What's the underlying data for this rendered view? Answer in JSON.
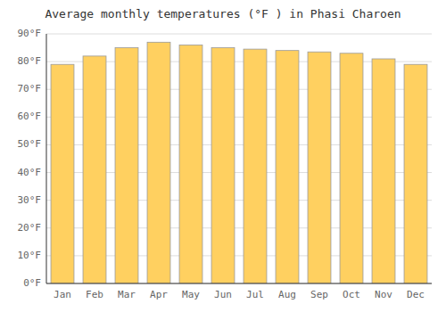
{
  "chart_data": {
    "type": "bar",
    "title": "Average monthly temperatures (°F ) in Phasi Charoen",
    "categories": [
      "Jan",
      "Feb",
      "Mar",
      "Apr",
      "May",
      "Jun",
      "Jul",
      "Aug",
      "Sep",
      "Oct",
      "Nov",
      "Dec"
    ],
    "values": [
      79.0,
      82.0,
      85.0,
      87.0,
      86.0,
      85.0,
      84.5,
      84.0,
      83.5,
      83.0,
      81.0,
      79.0
    ],
    "color": "#FFD060",
    "ylim": [
      0,
      90
    ],
    "yticks": [
      {
        "value": 0,
        "label": "0°F"
      },
      {
        "value": 10,
        "label": "10°F"
      },
      {
        "value": 20,
        "label": "20°F"
      },
      {
        "value": 30,
        "label": "30°F"
      },
      {
        "value": 40,
        "label": "40°F"
      },
      {
        "value": 50,
        "label": "50°F"
      },
      {
        "value": 60,
        "label": "60°F"
      },
      {
        "value": 70,
        "label": "70°F"
      },
      {
        "value": 80,
        "label": "80°F"
      },
      {
        "value": 90,
        "label": "90°F"
      }
    ],
    "grid": true
  }
}
